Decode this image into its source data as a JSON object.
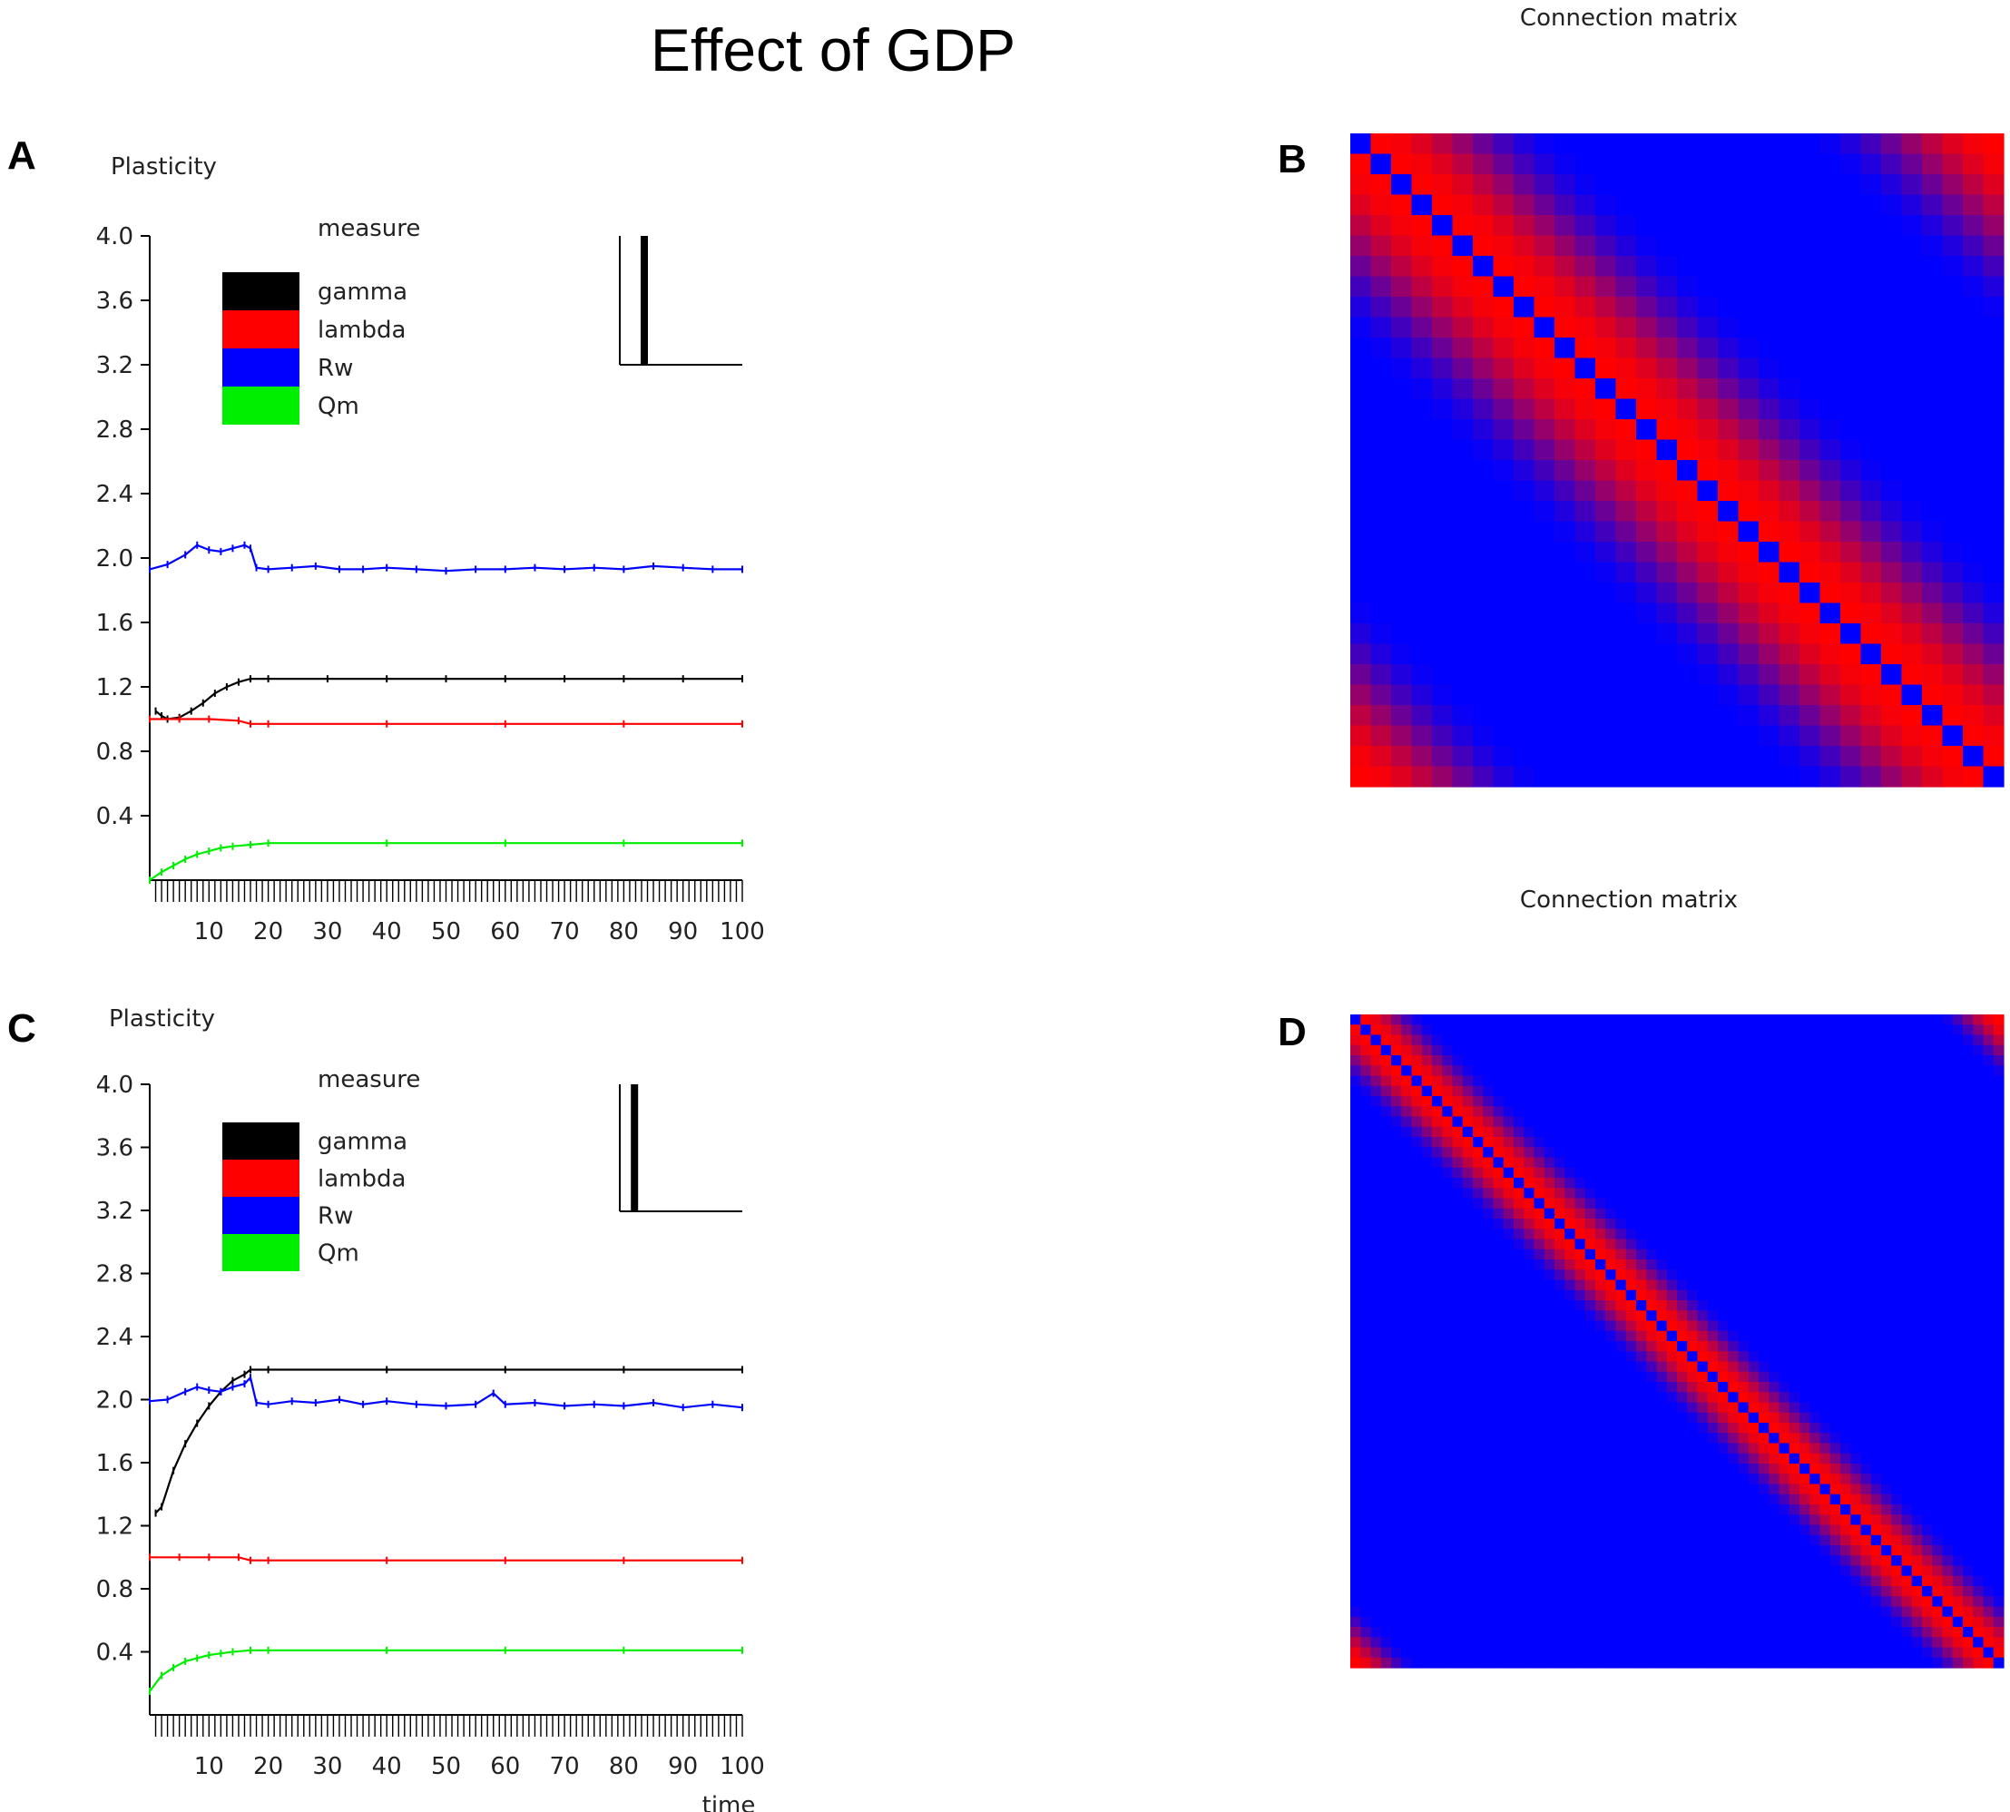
{
  "figure": {
    "title": "Effect of GDP",
    "panel_letters": {
      "a": "A",
      "b": "B",
      "c": "C",
      "d": "D"
    }
  },
  "colors": {
    "gamma": "#000000",
    "lambda": "#ff0000",
    "Rw": "#0000ff",
    "Qm": "#00ee00",
    "matrix_high": "#ff0000",
    "matrix_low": "#0000ff"
  },
  "chart_data": [
    {
      "panel": "A",
      "type": "line",
      "title": "Plasticity",
      "legend_title": "measure",
      "xlabel": "",
      "ylabel": "",
      "xlim": [
        0,
        100
      ],
      "ylim": [
        0,
        4.0
      ],
      "xticks": [
        10,
        20,
        30,
        40,
        50,
        60,
        70,
        80,
        90,
        100
      ],
      "yticks": [
        0.4,
        0.8,
        1.2,
        1.6,
        2.0,
        2.4,
        2.8,
        3.2,
        3.6,
        4.0
      ],
      "tick_labels_x": [
        "10",
        "20",
        "30",
        "40",
        "50",
        "60",
        "70",
        "80",
        "90",
        "100"
      ],
      "tick_labels_y": [
        "0.4",
        "0.8",
        "1.2",
        "1.6",
        "2.0",
        "2.4",
        "2.8",
        "3.2",
        "3.6",
        "4.0"
      ],
      "inset_histogram": {
        "bars": [
          {
            "x": 0.2,
            "value": 1.0
          }
        ]
      },
      "series": [
        {
          "name": "gamma",
          "x": [
            1,
            2,
            3,
            5,
            7,
            9,
            11,
            13,
            15,
            17,
            20,
            30,
            40,
            50,
            60,
            70,
            80,
            90,
            100
          ],
          "values": [
            1.05,
            1.02,
            1.0,
            1.01,
            1.05,
            1.1,
            1.16,
            1.2,
            1.23,
            1.25,
            1.25,
            1.25,
            1.25,
            1.25,
            1.25,
            1.25,
            1.25,
            1.25,
            1.25
          ]
        },
        {
          "name": "lambda",
          "x": [
            0,
            5,
            10,
            15,
            17,
            20,
            40,
            60,
            80,
            100
          ],
          "values": [
            1.0,
            1.0,
            1.0,
            0.99,
            0.97,
            0.97,
            0.97,
            0.97,
            0.97,
            0.97
          ]
        },
        {
          "name": "Rw",
          "x": [
            0,
            3,
            6,
            8,
            10,
            12,
            14,
            16,
            17,
            18,
            20,
            24,
            28,
            32,
            36,
            40,
            45,
            50,
            55,
            60,
            65,
            70,
            75,
            80,
            85,
            90,
            95,
            100
          ],
          "values": [
            1.93,
            1.96,
            2.02,
            2.08,
            2.05,
            2.04,
            2.06,
            2.08,
            2.06,
            1.94,
            1.93,
            1.94,
            1.95,
            1.93,
            1.93,
            1.94,
            1.93,
            1.92,
            1.93,
            1.93,
            1.94,
            1.93,
            1.94,
            1.93,
            1.95,
            1.94,
            1.93,
            1.93
          ]
        },
        {
          "name": "Qm",
          "x": [
            0,
            2,
            4,
            6,
            8,
            10,
            12,
            14,
            17,
            20,
            40,
            60,
            80,
            100
          ],
          "values": [
            0.0,
            0.05,
            0.09,
            0.13,
            0.16,
            0.18,
            0.2,
            0.21,
            0.22,
            0.23,
            0.23,
            0.23,
            0.23,
            0.23
          ]
        }
      ]
    },
    {
      "panel": "B",
      "type": "heatmap",
      "title": "Connection matrix",
      "size": 32,
      "kernel": "banded",
      "diagonal_value": "low",
      "near_diagonal_value": "high",
      "far_value": "low",
      "bandwidth_cells": 9
    },
    {
      "panel": "C",
      "type": "line",
      "title": "Plasticity",
      "legend_title": "measure",
      "xlabel": "time",
      "ylabel": "",
      "xlim": [
        0,
        100
      ],
      "ylim": [
        0,
        4.0
      ],
      "xticks": [
        10,
        20,
        30,
        40,
        50,
        60,
        70,
        80,
        90,
        100
      ],
      "yticks": [
        0.4,
        0.8,
        1.2,
        1.6,
        2.0,
        2.4,
        2.8,
        3.2,
        3.6,
        4.0
      ],
      "tick_labels_x": [
        "10",
        "20",
        "30",
        "40",
        "50",
        "60",
        "70",
        "80",
        "90",
        "100"
      ],
      "tick_labels_y": [
        "0.4",
        "0.8",
        "1.2",
        "1.6",
        "2.0",
        "2.4",
        "2.8",
        "3.2",
        "3.6",
        "4.0"
      ],
      "inset_histogram": {
        "bars": [
          {
            "x": 0.12,
            "value": 1.0
          }
        ]
      },
      "series": [
        {
          "name": "gamma",
          "x": [
            1,
            2,
            4,
            6,
            8,
            10,
            12,
            14,
            16,
            17,
            20,
            40,
            60,
            80,
            100
          ],
          "values": [
            1.28,
            1.32,
            1.55,
            1.72,
            1.85,
            1.96,
            2.05,
            2.12,
            2.16,
            2.19,
            2.19,
            2.19,
            2.19,
            2.19,
            2.19
          ]
        },
        {
          "name": "lambda",
          "x": [
            0,
            5,
            10,
            15,
            17,
            20,
            40,
            60,
            80,
            100
          ],
          "values": [
            1.0,
            1.0,
            1.0,
            1.0,
            0.98,
            0.98,
            0.98,
            0.98,
            0.98,
            0.98
          ]
        },
        {
          "name": "Rw",
          "x": [
            0,
            3,
            6,
            8,
            10,
            12,
            14,
            16,
            17,
            18,
            20,
            24,
            28,
            32,
            36,
            40,
            45,
            50,
            55,
            58,
            60,
            65,
            70,
            75,
            80,
            85,
            90,
            95,
            100
          ],
          "values": [
            1.99,
            2.0,
            2.05,
            2.08,
            2.06,
            2.05,
            2.08,
            2.1,
            2.14,
            1.98,
            1.97,
            1.99,
            1.98,
            2.0,
            1.97,
            1.99,
            1.97,
            1.96,
            1.97,
            2.04,
            1.97,
            1.98,
            1.96,
            1.97,
            1.96,
            1.98,
            1.95,
            1.97,
            1.95
          ]
        },
        {
          "name": "Qm",
          "x": [
            0,
            2,
            4,
            6,
            8,
            10,
            12,
            14,
            17,
            20,
            40,
            60,
            80,
            100
          ],
          "values": [
            0.15,
            0.25,
            0.3,
            0.34,
            0.36,
            0.38,
            0.39,
            0.4,
            0.41,
            0.41,
            0.41,
            0.41,
            0.41,
            0.41
          ]
        }
      ]
    },
    {
      "panel": "D",
      "type": "heatmap",
      "title": "Connection matrix",
      "size": 64,
      "kernel": "banded",
      "diagonal_value": "low",
      "near_diagonal_value": "high",
      "far_value": "low",
      "bandwidth_cells": 6
    }
  ]
}
